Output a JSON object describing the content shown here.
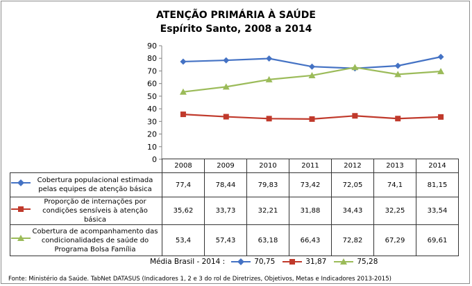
{
  "chart_data": {
    "type": "line",
    "title": "ATENÇÃO PRIMÁRIA À SAÚDE",
    "subtitle": "Espírito Santo, 2008 a 2014",
    "categories": [
      "2008",
      "2009",
      "2010",
      "2011",
      "2012",
      "2013",
      "2014"
    ],
    "ylim": [
      0,
      90
    ],
    "yticks": [
      0,
      10,
      20,
      30,
      40,
      50,
      60,
      70,
      80,
      90
    ],
    "grid": false,
    "series": [
      {
        "name": "Cobertura populacional estimada pelas equipes de atenção básica",
        "label_lines": [
          "Cobertura populacional estimada",
          "pelas equipes de atenção básica"
        ],
        "color": "#4472c4",
        "marker": "diamond",
        "values": [
          77.4,
          78.44,
          79.83,
          73.42,
          72.05,
          74.1,
          81.15
        ],
        "labels": [
          "77,4",
          "78,44",
          "79,83",
          "73,42",
          "72,05",
          "74,1",
          "81,15"
        ]
      },
      {
        "name": "Proporção de internações por condições sensíveis à atenção básica",
        "label_lines": [
          "Proporção de internações por",
          "condições sensíveis à atenção básica"
        ],
        "color": "#c0392b",
        "marker": "square",
        "values": [
          35.62,
          33.73,
          32.21,
          31.88,
          34.43,
          32.25,
          33.54
        ],
        "labels": [
          "35,62",
          "33,73",
          "32,21",
          "31,88",
          "34,43",
          "32,25",
          "33,54"
        ]
      },
      {
        "name": "Cobertura de acompanhamento das condicionalidades de saúde do Programa Bolsa Família",
        "label_lines": [
          "Cobertura de acompanhamento das",
          "condicionalidades de saúde do",
          "Programa Bolsa Família"
        ],
        "color": "#9bbb59",
        "marker": "triangle",
        "values": [
          53.4,
          57.43,
          63.18,
          66.43,
          72.82,
          67.29,
          69.61
        ],
        "labels": [
          "53,4",
          "57,43",
          "63,18",
          "66,43",
          "72,82",
          "67,29",
          "69,61"
        ]
      }
    ],
    "media_brasil": {
      "label": "Média Brasil - 2014 :",
      "values": [
        "70,75",
        "31,87",
        "75,28"
      ]
    }
  },
  "source": "Fonte: Ministério da Saúde. TabNet DATASUS (Indicadores 1, 2 e 3 do rol de Diretrizes, Objetivos, Metas e Indicadores 2013-2015)"
}
